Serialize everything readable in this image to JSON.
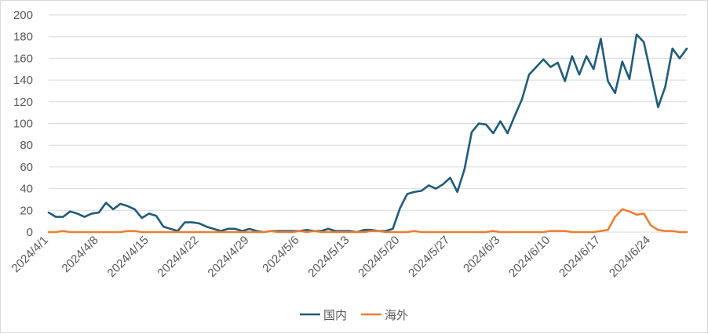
{
  "chart_data": {
    "type": "line",
    "title": "",
    "xlabel": "",
    "ylabel": "",
    "ylim": [
      0,
      200
    ],
    "yticks": [
      0,
      20,
      40,
      60,
      80,
      100,
      120,
      140,
      160,
      180,
      200
    ],
    "grid": "horizontal",
    "legend_position": "bottom",
    "x_start": "2024/4/1",
    "x_tick_labels": [
      "2024/4/1",
      "2024/4/8",
      "2024/4/15",
      "2024/4/22",
      "2024/4/29",
      "2024/5/6",
      "2024/5/13",
      "2024/5/20",
      "2024/5/27",
      "2024/6/3",
      "2024/6/10",
      "2024/6/17",
      "2024/6/24"
    ],
    "series": [
      {
        "name": "国内",
        "color": "#1f5c7a",
        "values": [
          18,
          14,
          14,
          19,
          17,
          14,
          17,
          18,
          27,
          21,
          26,
          24,
          21,
          13,
          17,
          15,
          5,
          3,
          1,
          9,
          9,
          8,
          5,
          3,
          1,
          3,
          3,
          1,
          3,
          1,
          0,
          1,
          1,
          1,
          1,
          1,
          2,
          1,
          1,
          3,
          1,
          1,
          1,
          0,
          2,
          2,
          1,
          1,
          3,
          22,
          35,
          37,
          38,
          43,
          40,
          44,
          50,
          37,
          58,
          92,
          100,
          99,
          91,
          102,
          91,
          107,
          122,
          145,
          152,
          159,
          152,
          156,
          139,
          162,
          145,
          162,
          150,
          178,
          139,
          128,
          157,
          141,
          182,
          175,
          145,
          115,
          134,
          169,
          160,
          169
        ]
      },
      {
        "name": "海外",
        "color": "#ed7d31",
        "values": [
          0,
          0,
          1,
          0,
          0,
          0,
          0,
          0,
          0,
          0,
          0,
          1,
          1,
          0,
          0,
          0,
          0,
          0,
          0,
          0,
          0,
          0,
          0,
          0,
          0,
          0,
          0,
          0,
          0,
          0,
          0,
          1,
          0,
          0,
          0,
          1,
          0,
          1,
          0,
          0,
          0,
          0,
          0,
          0,
          0,
          1,
          1,
          0,
          0,
          0,
          0,
          1,
          0,
          0,
          0,
          0,
          0,
          0,
          0,
          0,
          0,
          0,
          1,
          0,
          0,
          0,
          0,
          0,
          0,
          0,
          1,
          1,
          1,
          0,
          0,
          0,
          0,
          1,
          2,
          14,
          21,
          19,
          16,
          17,
          6,
          2,
          1,
          1,
          0,
          0
        ]
      }
    ]
  }
}
